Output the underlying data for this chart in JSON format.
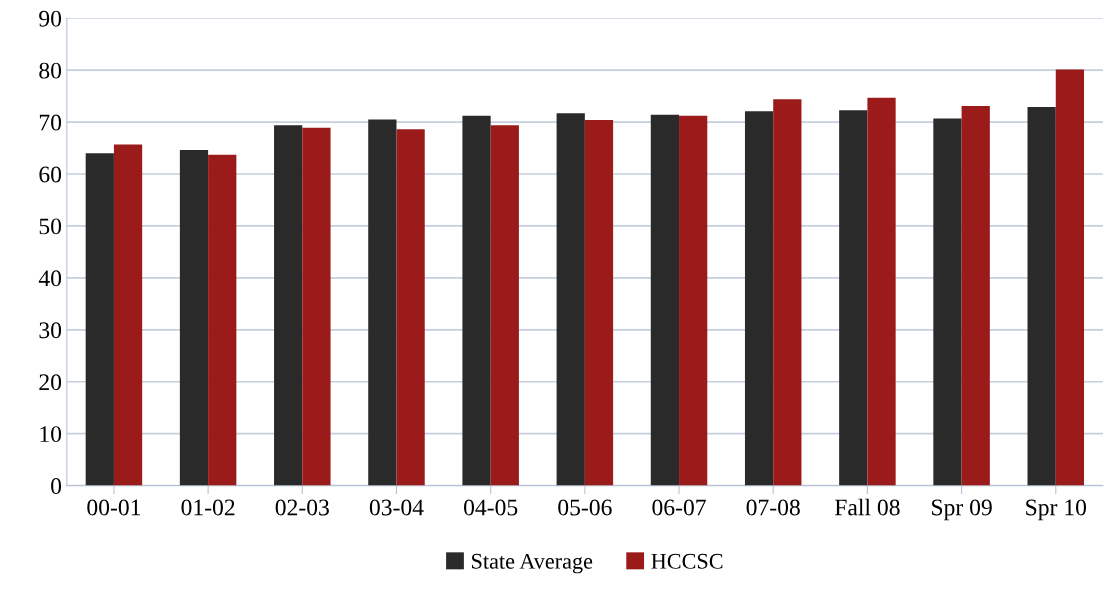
{
  "chart_data": {
    "type": "bar",
    "categories": [
      "00-01",
      "01-02",
      "02-03",
      "03-04",
      "04-05",
      "05-06",
      "06-07",
      "07-08",
      "Fall 08",
      "Spr 09",
      "Spr 10"
    ],
    "series": [
      {
        "name": "State Average",
        "color": "#2a2a2a",
        "values": [
          64.0,
          64.6,
          69.4,
          70.5,
          71.2,
          71.7,
          71.4,
          72.1,
          72.3,
          70.7,
          72.9
        ]
      },
      {
        "name": "HCCSC",
        "color": "#9b1b1b",
        "values": [
          65.7,
          63.7,
          68.9,
          68.6,
          69.4,
          70.4,
          71.2,
          74.4,
          74.7,
          73.1,
          80.1
        ]
      }
    ],
    "ylim": [
      0,
      90
    ],
    "yticks": [
      0,
      10,
      20,
      30,
      40,
      50,
      60,
      70,
      80,
      90
    ],
    "grid": "y",
    "legend": "bottom"
  }
}
